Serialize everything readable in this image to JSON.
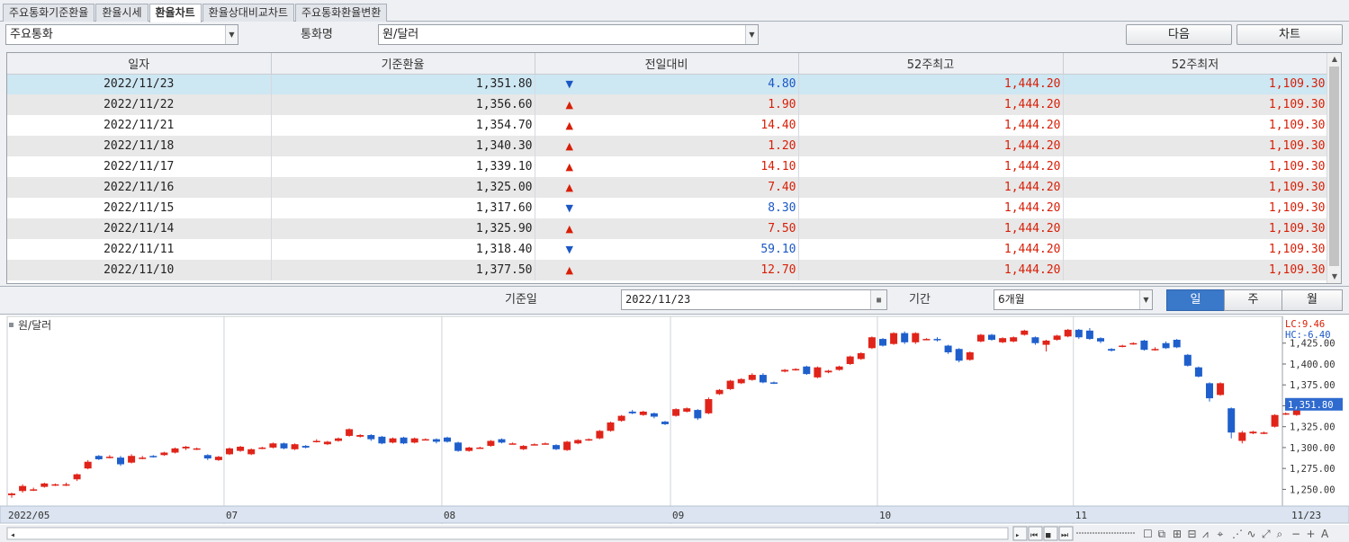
{
  "tabs": [
    {
      "label": "주요통화기준환율",
      "active": false
    },
    {
      "label": "환율시세",
      "active": false
    },
    {
      "label": "환율차트",
      "active": true
    },
    {
      "label": "환율상대비교차트",
      "active": false
    },
    {
      "label": "주요통화환율변환",
      "active": false
    }
  ],
  "filter": {
    "category": "주요통화",
    "currency_label": "통화명",
    "currency": "원/달러",
    "next_label": "다음",
    "chart_label": "차트"
  },
  "table": {
    "headers": [
      "일자",
      "기준환율",
      "전일대비",
      "52주최고",
      "52주최저"
    ],
    "rows": [
      {
        "date": "2022/11/23",
        "rate": "1,351.80",
        "dir": "down",
        "change": "4.80",
        "high": "1,444.20",
        "low": "1,109.30"
      },
      {
        "date": "2022/11/22",
        "rate": "1,356.60",
        "dir": "up",
        "change": "1.90",
        "high": "1,444.20",
        "low": "1,109.30"
      },
      {
        "date": "2022/11/21",
        "rate": "1,354.70",
        "dir": "up",
        "change": "14.40",
        "high": "1,444.20",
        "low": "1,109.30"
      },
      {
        "date": "2022/11/18",
        "rate": "1,340.30",
        "dir": "up",
        "change": "1.20",
        "high": "1,444.20",
        "low": "1,109.30"
      },
      {
        "date": "2022/11/17",
        "rate": "1,339.10",
        "dir": "up",
        "change": "14.10",
        "high": "1,444.20",
        "low": "1,109.30"
      },
      {
        "date": "2022/11/16",
        "rate": "1,325.00",
        "dir": "up",
        "change": "7.40",
        "high": "1,444.20",
        "low": "1,109.30"
      },
      {
        "date": "2022/11/15",
        "rate": "1,317.60",
        "dir": "down",
        "change": "8.30",
        "high": "1,444.20",
        "low": "1,109.30"
      },
      {
        "date": "2022/11/14",
        "rate": "1,325.90",
        "dir": "up",
        "change": "7.50",
        "high": "1,444.20",
        "low": "1,109.30"
      },
      {
        "date": "2022/11/11",
        "rate": "1,318.40",
        "dir": "down",
        "change": "59.10",
        "high": "1,444.20",
        "low": "1,109.30"
      },
      {
        "date": "2022/11/10",
        "rate": "1,377.50",
        "dir": "up",
        "change": "12.70",
        "high": "1,444.20",
        "low": "1,109.30"
      }
    ]
  },
  "controls": {
    "base_date_label": "기준일",
    "base_date": "2022/11/23",
    "period_label": "기간",
    "period": "6개월",
    "day_label": "일",
    "week_label": "주",
    "month_label": "월"
  },
  "colors": {
    "up": "#d81e06",
    "down": "#1b57c4",
    "selected_row": "#cde7f3",
    "active_segment": "#3a78c9"
  },
  "chart_data": {
    "type": "candlestick",
    "title": "원/달러",
    "lc_label": "LC:9.46",
    "hc_label": "HC:-6.40",
    "current_value_label": "1,351.80",
    "current_value": 1351.8,
    "ylim": [
      1230,
      1457
    ],
    "y_ticks": [
      1250,
      1275,
      1300,
      1325,
      1350,
      1375,
      1400,
      1425
    ],
    "y_tick_labels": [
      "1,250.00",
      "1,275.00",
      "1,300.00",
      "1,325.00",
      "1,350.00",
      "1,375.00",
      "1,400.00",
      "1,425.00"
    ],
    "x_labels": [
      {
        "label": "2022/05",
        "index": 0
      },
      {
        "label": "07",
        "index": 20
      },
      {
        "label": "08",
        "index": 40
      },
      {
        "label": "09",
        "index": 61
      },
      {
        "label": "10",
        "index": 80
      },
      {
        "label": "11",
        "index": 98
      },
      {
        "label": "11/23",
        "index": 115
      }
    ],
    "candles": [
      [
        1243,
        1245,
        1240,
        1246
      ],
      [
        1248,
        1254,
        1246,
        1256
      ],
      [
        1250,
        1250,
        1248,
        1252
      ],
      [
        1253,
        1257,
        1252,
        1258
      ],
      [
        1255,
        1256,
        1254,
        1257
      ],
      [
        1256,
        1256,
        1254,
        1258
      ],
      [
        1262,
        1268,
        1260,
        1269
      ],
      [
        1275,
        1283,
        1274,
        1285
      ],
      [
        1290,
        1286,
        1285,
        1291
      ],
      [
        1289,
        1289,
        1287,
        1291
      ],
      [
        1288,
        1280,
        1278,
        1290
      ],
      [
        1282,
        1290,
        1281,
        1292
      ],
      [
        1288,
        1288,
        1286,
        1290
      ],
      [
        1290,
        1289,
        1288,
        1291
      ],
      [
        1291,
        1294,
        1290,
        1295
      ],
      [
        1294,
        1299,
        1293,
        1300
      ],
      [
        1299,
        1301,
        1297,
        1302
      ],
      [
        1298,
        1299,
        1297,
        1300
      ],
      [
        1291,
        1287,
        1285,
        1292
      ],
      [
        1285,
        1289,
        1284,
        1290
      ],
      [
        1292,
        1299,
        1291,
        1300
      ],
      [
        1296,
        1301,
        1295,
        1302
      ],
      [
        1292,
        1298,
        1291,
        1299
      ],
      [
        1299,
        1300,
        1298,
        1301
      ],
      [
        1300,
        1305,
        1299,
        1306
      ],
      [
        1305,
        1299,
        1298,
        1306
      ],
      [
        1298,
        1304,
        1297,
        1305
      ],
      [
        1302,
        1300,
        1299,
        1303
      ],
      [
        1308,
        1308,
        1306,
        1310
      ],
      [
        1304,
        1307,
        1303,
        1308
      ],
      [
        1308,
        1311,
        1307,
        1312
      ],
      [
        1314,
        1322,
        1313,
        1323
      ],
      [
        1313,
        1315,
        1312,
        1316
      ],
      [
        1315,
        1310,
        1308,
        1316
      ],
      [
        1313,
        1305,
        1304,
        1314
      ],
      [
        1306,
        1311,
        1305,
        1312
      ],
      [
        1312,
        1305,
        1304,
        1313
      ],
      [
        1306,
        1311,
        1305,
        1312
      ],
      [
        1310,
        1310,
        1309,
        1311
      ],
      [
        1310,
        1307,
        1305,
        1311
      ],
      [
        1312,
        1307,
        1306,
        1313
      ],
      [
        1306,
        1296,
        1295,
        1307
      ],
      [
        1296,
        1300,
        1295,
        1301
      ],
      [
        1300,
        1300,
        1299,
        1301
      ],
      [
        1302,
        1308,
        1301,
        1309
      ],
      [
        1310,
        1306,
        1305,
        1311
      ],
      [
        1305,
        1305,
        1304,
        1306
      ],
      [
        1298,
        1302,
        1297,
        1303
      ],
      [
        1304,
        1304,
        1303,
        1305
      ],
      [
        1305,
        1305,
        1304,
        1306
      ],
      [
        1303,
        1298,
        1297,
        1304
      ],
      [
        1297,
        1307,
        1296,
        1308
      ],
      [
        1305,
        1309,
        1304,
        1310
      ],
      [
        1309,
        1310,
        1308,
        1311
      ],
      [
        1311,
        1320,
        1310,
        1321
      ],
      [
        1320,
        1330,
        1319,
        1331
      ],
      [
        1332,
        1338,
        1331,
        1339
      ],
      [
        1343,
        1341,
        1340,
        1345
      ],
      [
        1339,
        1343,
        1338,
        1344
      ],
      [
        1341,
        1337,
        1335,
        1342
      ],
      [
        1331,
        1328,
        1327,
        1332
      ],
      [
        1338,
        1346,
        1337,
        1347
      ],
      [
        1343,
        1347,
        1342,
        1348
      ],
      [
        1345,
        1335,
        1333,
        1346
      ],
      [
        1341,
        1358,
        1340,
        1360
      ],
      [
        1364,
        1369,
        1363,
        1370
      ],
      [
        1370,
        1380,
        1369,
        1381
      ],
      [
        1377,
        1382,
        1376,
        1383
      ],
      [
        1381,
        1387,
        1380,
        1389
      ],
      [
        1387,
        1378,
        1377,
        1389
      ],
      [
        1378,
        1377,
        1376,
        1379
      ],
      [
        1391,
        1393,
        1390,
        1394
      ],
      [
        1393,
        1394,
        1392,
        1395
      ],
      [
        1397,
        1388,
        1387,
        1398
      ],
      [
        1384,
        1396,
        1383,
        1397
      ],
      [
        1390,
        1392,
        1389,
        1393
      ],
      [
        1393,
        1397,
        1392,
        1398
      ],
      [
        1400,
        1409,
        1399,
        1410
      ],
      [
        1406,
        1413,
        1405,
        1414
      ],
      [
        1419,
        1432,
        1418,
        1433
      ],
      [
        1430,
        1422,
        1421,
        1431
      ],
      [
        1424,
        1437,
        1423,
        1438
      ],
      [
        1437,
        1426,
        1424,
        1439
      ],
      [
        1426,
        1437,
        1424,
        1438
      ],
      [
        1430,
        1430,
        1429,
        1431
      ],
      [
        1430,
        1429,
        1427,
        1432
      ],
      [
        1422,
        1414,
        1412,
        1423
      ],
      [
        1418,
        1404,
        1402,
        1419
      ],
      [
        1405,
        1414,
        1404,
        1415
      ],
      [
        1427,
        1435,
        1426,
        1436
      ],
      [
        1435,
        1429,
        1428,
        1436
      ],
      [
        1426,
        1431,
        1425,
        1432
      ],
      [
        1427,
        1432,
        1426,
        1433
      ],
      [
        1435,
        1440,
        1434,
        1441
      ],
      [
        1432,
        1425,
        1423,
        1433
      ],
      [
        1423,
        1428,
        1415,
        1429
      ],
      [
        1429,
        1434,
        1428,
        1435
      ],
      [
        1433,
        1441,
        1432,
        1442
      ],
      [
        1441,
        1432,
        1430,
        1442
      ],
      [
        1440,
        1430,
        1429,
        1443
      ],
      [
        1431,
        1427,
        1425,
        1432
      ],
      [
        1418,
        1416,
        1415,
        1419
      ],
      [
        1421,
        1422,
        1420,
        1423
      ],
      [
        1425,
        1425,
        1423,
        1426
      ],
      [
        1428,
        1417,
        1416,
        1429
      ],
      [
        1418,
        1418,
        1416,
        1420
      ],
      [
        1425,
        1419,
        1418,
        1427
      ],
      [
        1429,
        1420,
        1419,
        1430
      ],
      [
        1411,
        1398,
        1397,
        1412
      ],
      [
        1396,
        1385,
        1384,
        1397
      ],
      [
        1377,
        1359,
        1355,
        1378
      ],
      [
        1363,
        1377,
        1362,
        1378
      ],
      [
        1347,
        1318,
        1311,
        1348
      ],
      [
        1308,
        1318,
        1305,
        1320
      ],
      [
        1317,
        1319,
        1316,
        1320
      ],
      [
        1318,
        1318,
        1316,
        1319
      ],
      [
        1325,
        1339,
        1324,
        1340
      ],
      [
        1340,
        1341,
        1339,
        1342
      ],
      [
        1339,
        1354,
        1338,
        1355
      ],
      [
        1356,
        1354,
        1353,
        1357
      ],
      [
        1353,
        1352,
        1351,
        1354
      ]
    ]
  }
}
